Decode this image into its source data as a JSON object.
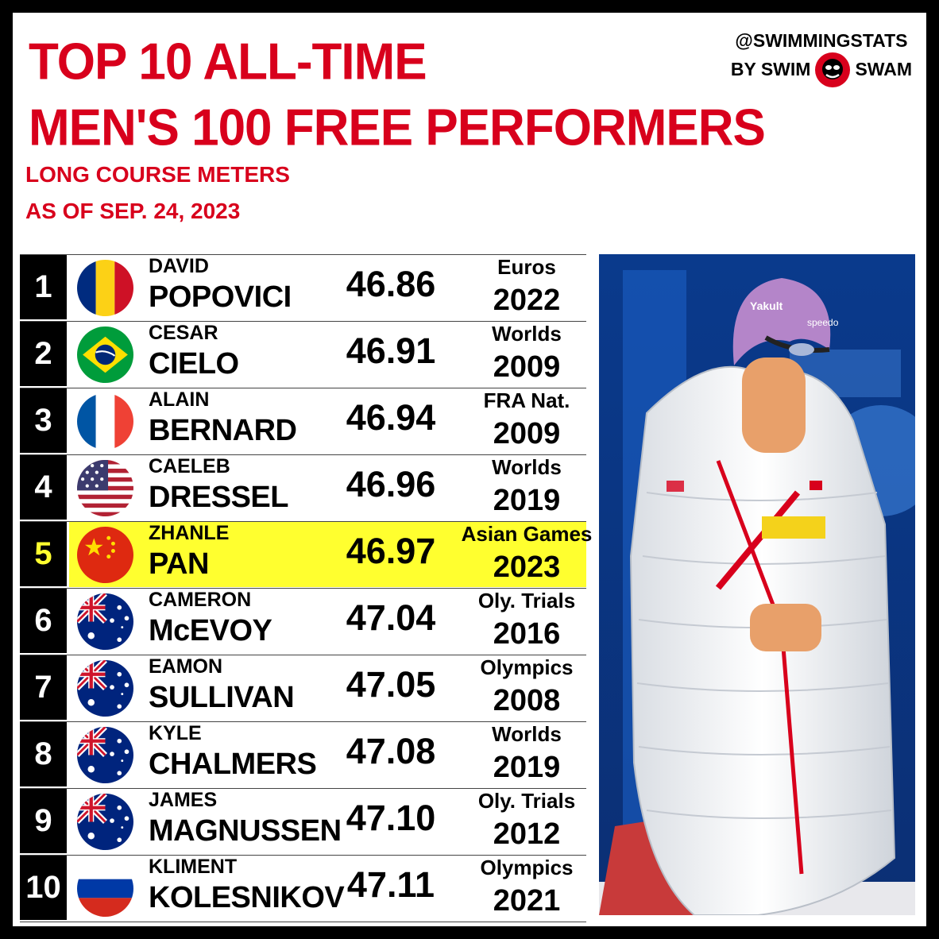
{
  "header": {
    "title_line1": "TOP 10 ALL-TIME",
    "title_line2": "MEN'S 100 FREE PERFORMERS",
    "subtitle_line1": "LONG COURSE METERS",
    "subtitle_line2": "AS OF SEP. 24, 2023"
  },
  "brand": {
    "handle": "@SWIMMINGSTATS",
    "by_text": "BY SWIM",
    "swam_text": "SWAM"
  },
  "colors": {
    "accent": "#d8001c",
    "highlight": "#ffff2f"
  },
  "rows": [
    {
      "rank": "1",
      "first": "DAVID",
      "last": "POPOVICI",
      "time": "46.86",
      "meet": "Euros",
      "year": "2022",
      "flag": "romania-flag",
      "highlight": false
    },
    {
      "rank": "2",
      "first": "CESAR",
      "last": "CIELO",
      "time": "46.91",
      "meet": "Worlds",
      "year": "2009",
      "flag": "brazil-flag",
      "highlight": false
    },
    {
      "rank": "3",
      "first": "ALAIN",
      "last": "BERNARD",
      "time": "46.94",
      "meet": "FRA Nat.",
      "year": "2009",
      "flag": "france-flag",
      "highlight": false
    },
    {
      "rank": "4",
      "first": "CAELEB",
      "last": "DRESSEL",
      "time": "46.96",
      "meet": "Worlds",
      "year": "2019",
      "flag": "usa-flag",
      "highlight": false
    },
    {
      "rank": "5",
      "first": "ZHANLE",
      "last": "PAN",
      "time": "46.97",
      "meet": "Asian Games",
      "year": "2023",
      "flag": "china-flag",
      "highlight": true
    },
    {
      "rank": "6",
      "first": "CAMERON",
      "last": "McEVOY",
      "time": "47.04",
      "meet": "Oly. Trials",
      "year": "2016",
      "flag": "australia-flag",
      "highlight": false
    },
    {
      "rank": "7",
      "first": "EAMON",
      "last": "SULLIVAN",
      "time": "47.05",
      "meet": "Olympics",
      "year": "2008",
      "flag": "australia-flag",
      "highlight": false
    },
    {
      "rank": "8",
      "first": "KYLE",
      "last": "CHALMERS",
      "time": "47.08",
      "meet": "Worlds",
      "year": "2019",
      "flag": "australia-flag",
      "highlight": false
    },
    {
      "rank": "9",
      "first": "JAMES",
      "last": "MAGNUSSEN",
      "time": "47.10",
      "meet": "Oly. Trials",
      "year": "2012",
      "flag": "australia-flag",
      "highlight": false
    },
    {
      "rank": "10",
      "first": "KLIMENT",
      "last": "KOLESNIKOV",
      "time": "47.11",
      "meet": "Olympics",
      "year": "2021",
      "flag": "russia-flag",
      "highlight": false
    }
  ],
  "photo": {
    "cap_text": "Yakult",
    "cap_brand": "speedo"
  }
}
